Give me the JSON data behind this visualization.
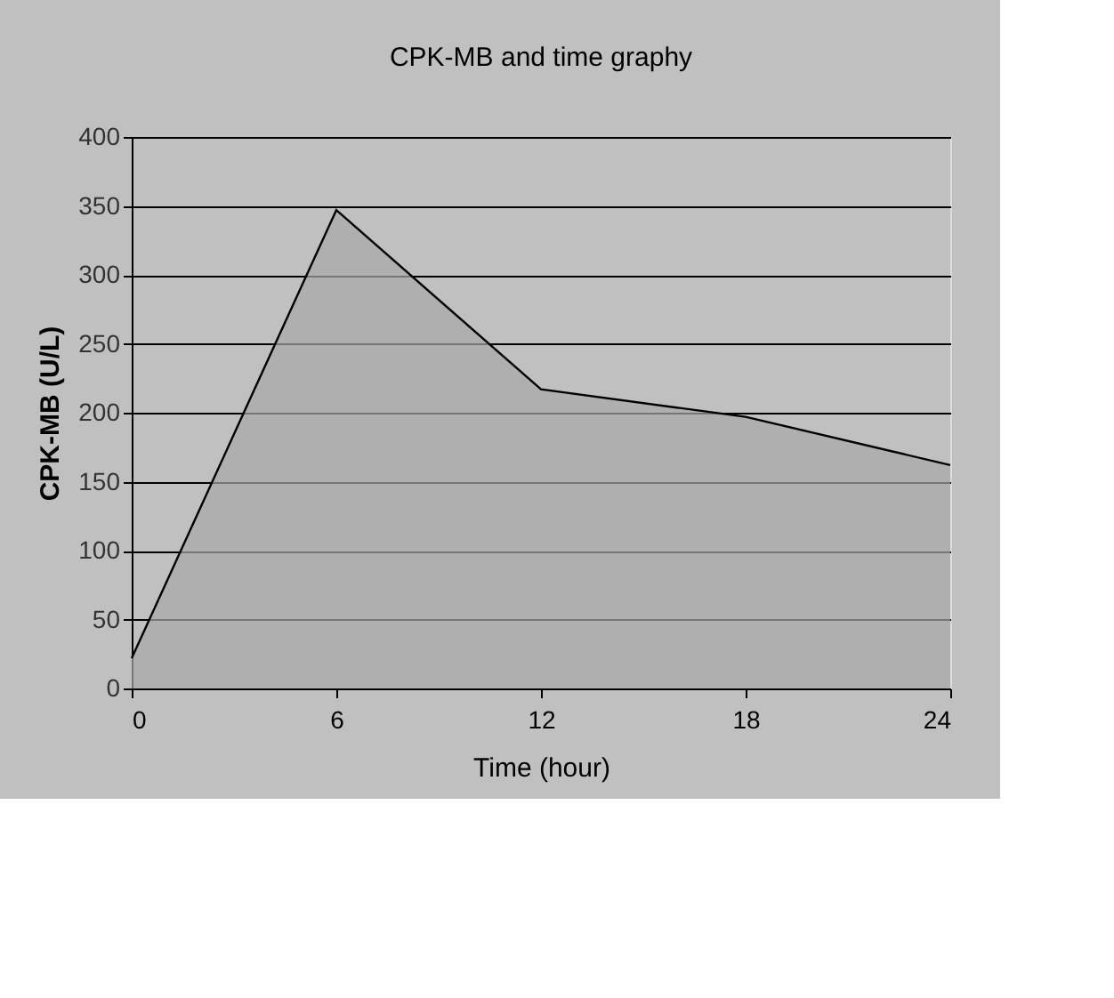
{
  "chart_data": {
    "type": "area",
    "title": "CPK-MB and time graphy",
    "xlabel": "Time (hour)",
    "ylabel": "CPK-MB (U/L)",
    "x": [
      0,
      6,
      12,
      18,
      24
    ],
    "series": [
      {
        "color": "#a8a8a8",
        "values": [
          22,
          347,
          217,
          197,
          162
        ]
      }
    ],
    "xlim": [
      0,
      24
    ],
    "xticks": [
      0,
      6,
      12,
      18,
      24
    ],
    "ylim": [
      0,
      400
    ],
    "yticks": [
      0,
      50,
      100,
      150,
      200,
      250,
      300,
      350,
      400
    ],
    "grid": "y"
  }
}
